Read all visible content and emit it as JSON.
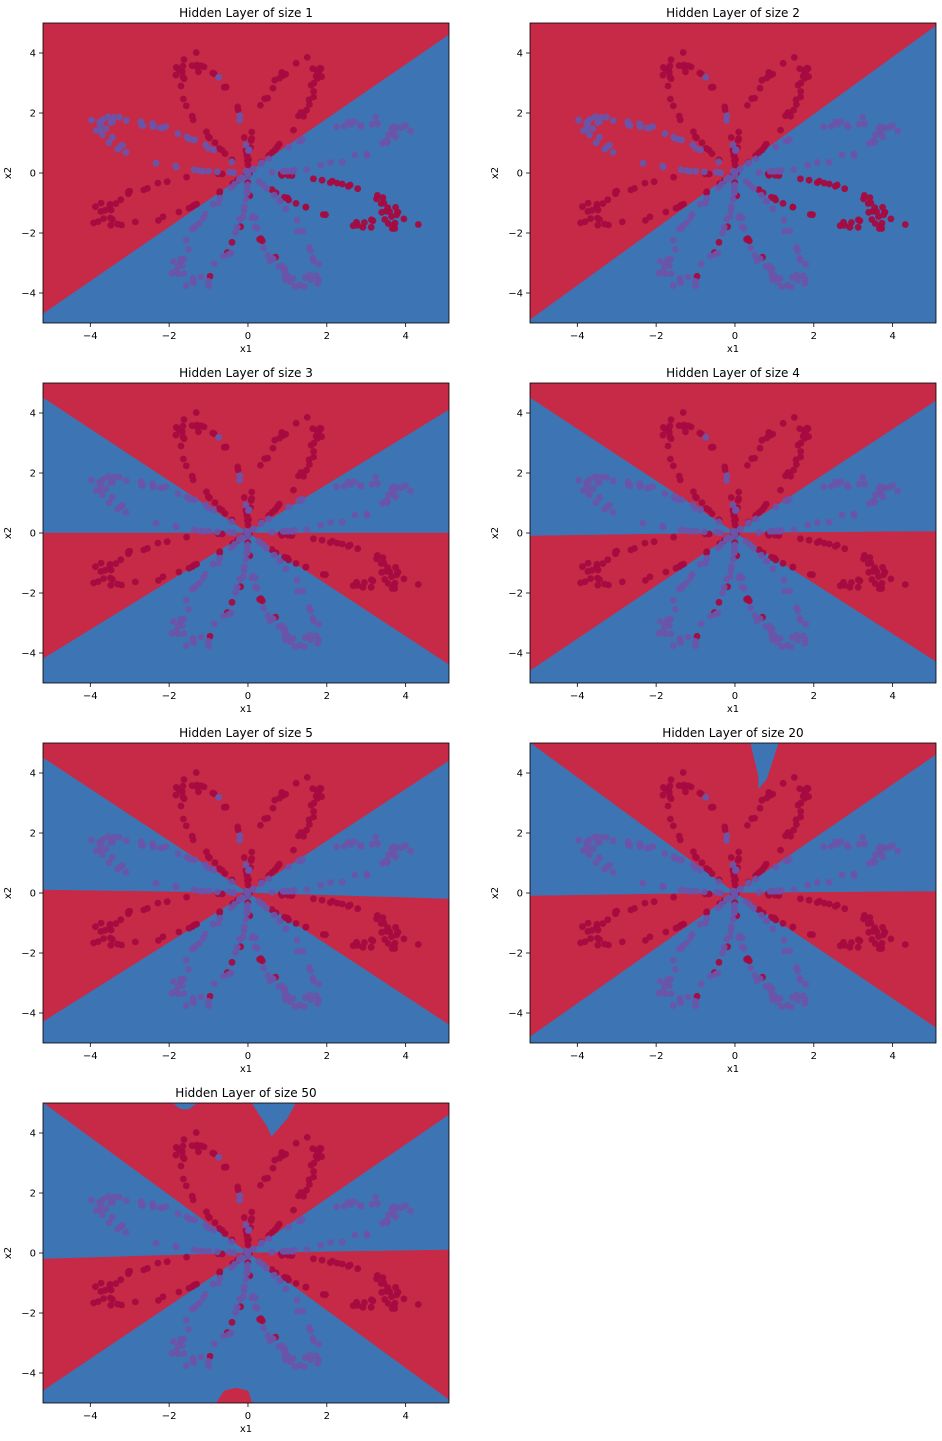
{
  "colors": {
    "region_a": "#c72a47",
    "region_b": "#3d75b4",
    "point_a": "#a50b41",
    "point_b": "#6a54a9",
    "axes": "#000000",
    "background": "#ffffff"
  },
  "chart_data": [
    {
      "type": "scatter",
      "title": "Hidden Layer of size 1",
      "xlabel": "x1",
      "ylabel": "x2",
      "xlim": [
        -5.2,
        5.1
      ],
      "ylim": [
        -5.0,
        5.0
      ],
      "xticks": [
        -4,
        -2,
        0,
        2,
        4
      ],
      "yticks": [
        -4,
        -2,
        0,
        2,
        4
      ],
      "grid": false,
      "regions": [
        {
          "class": "region_a",
          "polygon": [
            [
              -5.2,
              -4.7
            ],
            [
              5.1,
              4.6
            ],
            [
              5.1,
              5.0
            ],
            [
              -5.2,
              5.0
            ]
          ]
        },
        {
          "class": "region_b",
          "polygon": [
            [
              -5.2,
              -5.0
            ],
            [
              5.1,
              -5.0
            ],
            [
              5.1,
              4.6
            ],
            [
              -5.2,
              -4.7
            ]
          ]
        }
      ]
    },
    {
      "type": "scatter",
      "title": "Hidden Layer of size 2",
      "xlabel": "x1",
      "ylabel": "x2",
      "xlim": [
        -5.2,
        5.1
      ],
      "ylim": [
        -5.0,
        5.0
      ],
      "xticks": [
        -4,
        -2,
        0,
        2,
        4
      ],
      "yticks": [
        -4,
        -2,
        0,
        2,
        4
      ],
      "grid": false,
      "regions": [
        {
          "class": "region_a",
          "polygon": [
            [
              -5.2,
              -4.9
            ],
            [
              5.1,
              4.9
            ],
            [
              5.1,
              5.0
            ],
            [
              -5.2,
              5.0
            ]
          ]
        },
        {
          "class": "region_b",
          "polygon": [
            [
              -5.2,
              -5.0
            ],
            [
              5.1,
              -5.0
            ],
            [
              5.1,
              4.9
            ],
            [
              -5.2,
              -4.9
            ]
          ]
        }
      ]
    },
    {
      "type": "scatter",
      "title": "Hidden Layer of size 3",
      "xlabel": "x1",
      "ylabel": "x2",
      "xlim": [
        -5.2,
        5.1
      ],
      "ylim": [
        -5.0,
        5.0
      ],
      "xticks": [
        -4,
        -2,
        0,
        2,
        4
      ],
      "yticks": [
        -4,
        -2,
        0,
        2,
        4
      ],
      "grid": false,
      "regions": [
        {
          "class": "region_a",
          "polygon": [
            [
              -5.2,
              5.0
            ],
            [
              5.1,
              5.0
            ],
            [
              5.1,
              4.1
            ],
            [
              0,
              0
            ],
            [
              -5.2,
              4.5
            ]
          ]
        },
        {
          "class": "region_b",
          "polygon": [
            [
              -5.2,
              4.5
            ],
            [
              0,
              0
            ],
            [
              -5.2,
              0
            ]
          ]
        },
        {
          "class": "region_b",
          "polygon": [
            [
              5.1,
              4.1
            ],
            [
              5.1,
              0
            ],
            [
              0,
              0
            ]
          ]
        },
        {
          "class": "region_a",
          "polygon": [
            [
              -5.2,
              0
            ],
            [
              0,
              0
            ],
            [
              -5.2,
              -4.2
            ]
          ]
        },
        {
          "class": "region_a",
          "polygon": [
            [
              5.1,
              0
            ],
            [
              5.1,
              -4.4
            ],
            [
              0,
              0
            ]
          ]
        },
        {
          "class": "region_b",
          "polygon": [
            [
              -5.2,
              -4.2
            ],
            [
              0,
              0
            ],
            [
              5.1,
              -4.4
            ],
            [
              5.1,
              -5.0
            ],
            [
              -5.2,
              -5.0
            ]
          ]
        }
      ]
    },
    {
      "type": "scatter",
      "title": "Hidden Layer of size 4",
      "xlabel": "x1",
      "ylabel": "x2",
      "xlim": [
        -5.2,
        5.1
      ],
      "ylim": [
        -5.0,
        5.0
      ],
      "xticks": [
        -4,
        -2,
        0,
        2,
        4
      ],
      "yticks": [
        -4,
        -2,
        0,
        2,
        4
      ],
      "grid": false,
      "regions": [
        {
          "class": "region_a",
          "polygon": [
            [
              -5.2,
              5.0
            ],
            [
              5.1,
              5.0
            ],
            [
              5.1,
              4.4
            ],
            [
              0,
              0
            ],
            [
              -5.2,
              4.5
            ]
          ]
        },
        {
          "class": "region_b",
          "polygon": [
            [
              -5.2,
              4.5
            ],
            [
              0,
              0
            ],
            [
              -5.2,
              -0.1
            ]
          ]
        },
        {
          "class": "region_b",
          "polygon": [
            [
              5.1,
              4.4
            ],
            [
              5.1,
              0.05
            ],
            [
              0,
              0
            ]
          ]
        },
        {
          "class": "region_a",
          "polygon": [
            [
              -5.2,
              -0.1
            ],
            [
              0,
              0
            ],
            [
              -5.2,
              -4.6
            ]
          ]
        },
        {
          "class": "region_a",
          "polygon": [
            [
              5.1,
              0.05
            ],
            [
              5.1,
              -4.3
            ],
            [
              0,
              0
            ]
          ]
        },
        {
          "class": "region_b",
          "polygon": [
            [
              -5.2,
              -4.6
            ],
            [
              0,
              0
            ],
            [
              5.1,
              -4.3
            ],
            [
              5.1,
              -5.0
            ],
            [
              -5.2,
              -5.0
            ]
          ]
        }
      ]
    },
    {
      "type": "scatter",
      "title": "Hidden Layer of size 5",
      "xlabel": "x1",
      "ylabel": "x2",
      "xlim": [
        -5.2,
        5.1
      ],
      "ylim": [
        -5.0,
        5.0
      ],
      "xticks": [
        -4,
        -2,
        0,
        2,
        4
      ],
      "yticks": [
        -4,
        -2,
        0,
        2,
        4
      ],
      "grid": false,
      "regions": [
        {
          "class": "region_a",
          "polygon": [
            [
              -5.2,
              5.0
            ],
            [
              5.1,
              5.0
            ],
            [
              5.1,
              4.4
            ],
            [
              0,
              0
            ],
            [
              -5.2,
              4.5
            ]
          ]
        },
        {
          "class": "region_b",
          "polygon": [
            [
              -5.2,
              4.5
            ],
            [
              0,
              0
            ],
            [
              -5.2,
              0.1
            ]
          ]
        },
        {
          "class": "region_b",
          "polygon": [
            [
              5.1,
              4.4
            ],
            [
              5.1,
              -0.2
            ],
            [
              0,
              0
            ]
          ]
        },
        {
          "class": "region_a",
          "polygon": [
            [
              -5.2,
              0.1
            ],
            [
              0,
              0
            ],
            [
              -5.2,
              -4.3
            ]
          ]
        },
        {
          "class": "region_a",
          "polygon": [
            [
              5.1,
              -0.2
            ],
            [
              5.1,
              -4.4
            ],
            [
              0,
              0
            ]
          ]
        },
        {
          "class": "region_b",
          "polygon": [
            [
              -5.2,
              -4.3
            ],
            [
              0,
              0
            ],
            [
              5.1,
              -4.4
            ],
            [
              5.1,
              -5.0
            ],
            [
              -5.2,
              -5.0
            ]
          ]
        }
      ]
    },
    {
      "type": "scatter",
      "title": "Hidden Layer of size 20",
      "xlabel": "x1",
      "ylabel": "x2",
      "xlim": [
        -5.2,
        5.1
      ],
      "ylim": [
        -5.0,
        5.0
      ],
      "xticks": [
        -4,
        -2,
        0,
        2,
        4
      ],
      "yticks": [
        -4,
        -2,
        0,
        2,
        4
      ],
      "grid": false,
      "regions": [
        {
          "class": "region_a",
          "polygon": [
            [
              -5.2,
              5.0
            ],
            [
              5.1,
              5.0
            ],
            [
              5.1,
              4.6
            ],
            [
              0,
              0
            ],
            [
              -5.2,
              5.0
            ]
          ]
        },
        {
          "class": "region_b",
          "polygon": [
            [
              -5.2,
              5.0
            ],
            [
              0,
              0
            ],
            [
              -5.2,
              -0.1
            ]
          ]
        },
        {
          "class": "region_b",
          "polygon": [
            [
              5.1,
              4.6
            ],
            [
              5.1,
              0.05
            ],
            [
              0,
              0
            ]
          ]
        },
        {
          "class": "region_a",
          "polygon": [
            [
              -5.2,
              -0.1
            ],
            [
              0,
              0
            ],
            [
              -5.2,
              -4.8
            ]
          ]
        },
        {
          "class": "region_a",
          "polygon": [
            [
              5.1,
              0.05
            ],
            [
              5.1,
              -4.5
            ],
            [
              0,
              0
            ]
          ]
        },
        {
          "class": "region_b",
          "polygon": [
            [
              -5.2,
              -4.8
            ],
            [
              0,
              0
            ],
            [
              5.1,
              -4.5
            ],
            [
              5.1,
              -5.0
            ],
            [
              -5.2,
              -5.0
            ]
          ]
        },
        {
          "class": "region_b",
          "polygon": [
            [
              0.4,
              5.0
            ],
            [
              0.6,
              3.9
            ],
            [
              0.6,
              3.5
            ],
            [
              0.8,
              3.8
            ],
            [
              1.1,
              5.0
            ]
          ]
        }
      ]
    },
    {
      "type": "scatter",
      "title": "Hidden Layer of size 50",
      "xlabel": "x1",
      "ylabel": "x2",
      "xlim": [
        -5.2,
        5.1
      ],
      "ylim": [
        -5.0,
        5.0
      ],
      "xticks": [
        -4,
        -2,
        0,
        2,
        4
      ],
      "yticks": [
        -4,
        -2,
        0,
        2,
        4
      ],
      "grid": false,
      "regions": [
        {
          "class": "region_a",
          "polygon": [
            [
              -5.2,
              5.0
            ],
            [
              5.1,
              5.0
            ],
            [
              5.1,
              4.6
            ],
            [
              0,
              0
            ],
            [
              -5.2,
              5.0
            ]
          ]
        },
        {
          "class": "region_b",
          "polygon": [
            [
              -5.2,
              5.0
            ],
            [
              0,
              0
            ],
            [
              -5.2,
              -0.2
            ]
          ]
        },
        {
          "class": "region_b",
          "polygon": [
            [
              5.1,
              4.6
            ],
            [
              5.1,
              0.1
            ],
            [
              0,
              0
            ]
          ]
        },
        {
          "class": "region_a",
          "polygon": [
            [
              -5.2,
              -0.2
            ],
            [
              0,
              0
            ],
            [
              -5.2,
              -4.6
            ]
          ]
        },
        {
          "class": "region_a",
          "polygon": [
            [
              5.1,
              0.1
            ],
            [
              5.1,
              -4.9
            ],
            [
              0,
              0
            ]
          ]
        },
        {
          "class": "region_b",
          "polygon": [
            [
              -5.2,
              -4.6
            ],
            [
              0,
              0
            ],
            [
              5.1,
              -4.9
            ],
            [
              5.1,
              -5.0
            ],
            [
              -5.2,
              -5.0
            ]
          ]
        },
        {
          "class": "region_b",
          "polygon": [
            [
              0.1,
              5.0
            ],
            [
              0.5,
              4.2
            ],
            [
              0.6,
              3.9
            ],
            [
              1.0,
              4.5
            ],
            [
              1.2,
              5.0
            ]
          ]
        },
        {
          "class": "region_b",
          "polygon": [
            [
              -1.9,
              5.0
            ],
            [
              -1.7,
              4.8
            ],
            [
              -1.5,
              4.8
            ],
            [
              -1.3,
              5.0
            ]
          ]
        },
        {
          "class": "region_a",
          "polygon": [
            [
              -0.8,
              -5.0
            ],
            [
              -0.6,
              -4.6
            ],
            [
              -0.3,
              -4.5
            ],
            [
              0.0,
              -4.6
            ],
            [
              0.1,
              -5.0
            ]
          ]
        }
      ]
    }
  ]
}
